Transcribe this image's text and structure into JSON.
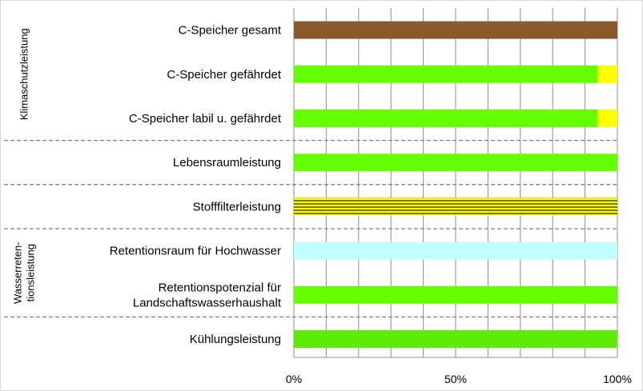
{
  "chart_data": {
    "type": "bar",
    "orientation": "horizontal",
    "stacked": true,
    "xlim": [
      0,
      100
    ],
    "x_ticks": [
      "0%",
      "50%",
      "100%"
    ],
    "grid": "vertical",
    "categories": [
      {
        "label": [
          "C-Speicher gesamt"
        ],
        "segments": [
          {
            "value": 100,
            "color": "#8B5A2B",
            "pattern": "solid"
          }
        ]
      },
      {
        "label": [
          "C-Speicher gefährdet"
        ],
        "segments": [
          {
            "value": 94,
            "color": "#66FF00",
            "pattern": "solid"
          },
          {
            "value": 6,
            "color": "#FFFF00",
            "pattern": "solid"
          }
        ]
      },
      {
        "label": [
          "C-Speicher labil u. gefährdet"
        ],
        "segments": [
          {
            "value": 94,
            "color": "#66FF00",
            "pattern": "solid"
          },
          {
            "value": 6,
            "color": "#FFFF00",
            "pattern": "solid"
          }
        ]
      },
      {
        "label": [
          "Lebensraumleistung"
        ],
        "segments": [
          {
            "value": 100,
            "color": "#66FF00",
            "pattern": "solid"
          }
        ]
      },
      {
        "label": [
          "Stofffilterleistung"
        ],
        "segments": [
          {
            "value": 100,
            "color": "#FFFF00",
            "pattern": "horizontal-lines"
          }
        ]
      },
      {
        "label": [
          "Retentionsraum für Hochwasser"
        ],
        "segments": [
          {
            "value": 100,
            "color": "#BFFFFF",
            "pattern": "solid"
          }
        ]
      },
      {
        "label": [
          "Retentionspotenzial für",
          "Landschaftswasserhaushalt"
        ],
        "segments": [
          {
            "value": 100,
            "color": "#66FF00",
            "pattern": "solid"
          }
        ]
      },
      {
        "label": [
          "Kühlungsleistung"
        ],
        "segments": [
          {
            "value": 100,
            "color": "#66FF00",
            "pattern": "dots"
          }
        ]
      }
    ],
    "groups": [
      {
        "label": [
          "Klimaschutzleistung"
        ],
        "rows": [
          0,
          1,
          2
        ]
      },
      {
        "label": [
          "Wasserreten-",
          "tionsleistung"
        ],
        "rows": [
          5,
          6
        ]
      }
    ],
    "separators_after_rows": [
      2,
      3,
      4,
      6
    ]
  }
}
